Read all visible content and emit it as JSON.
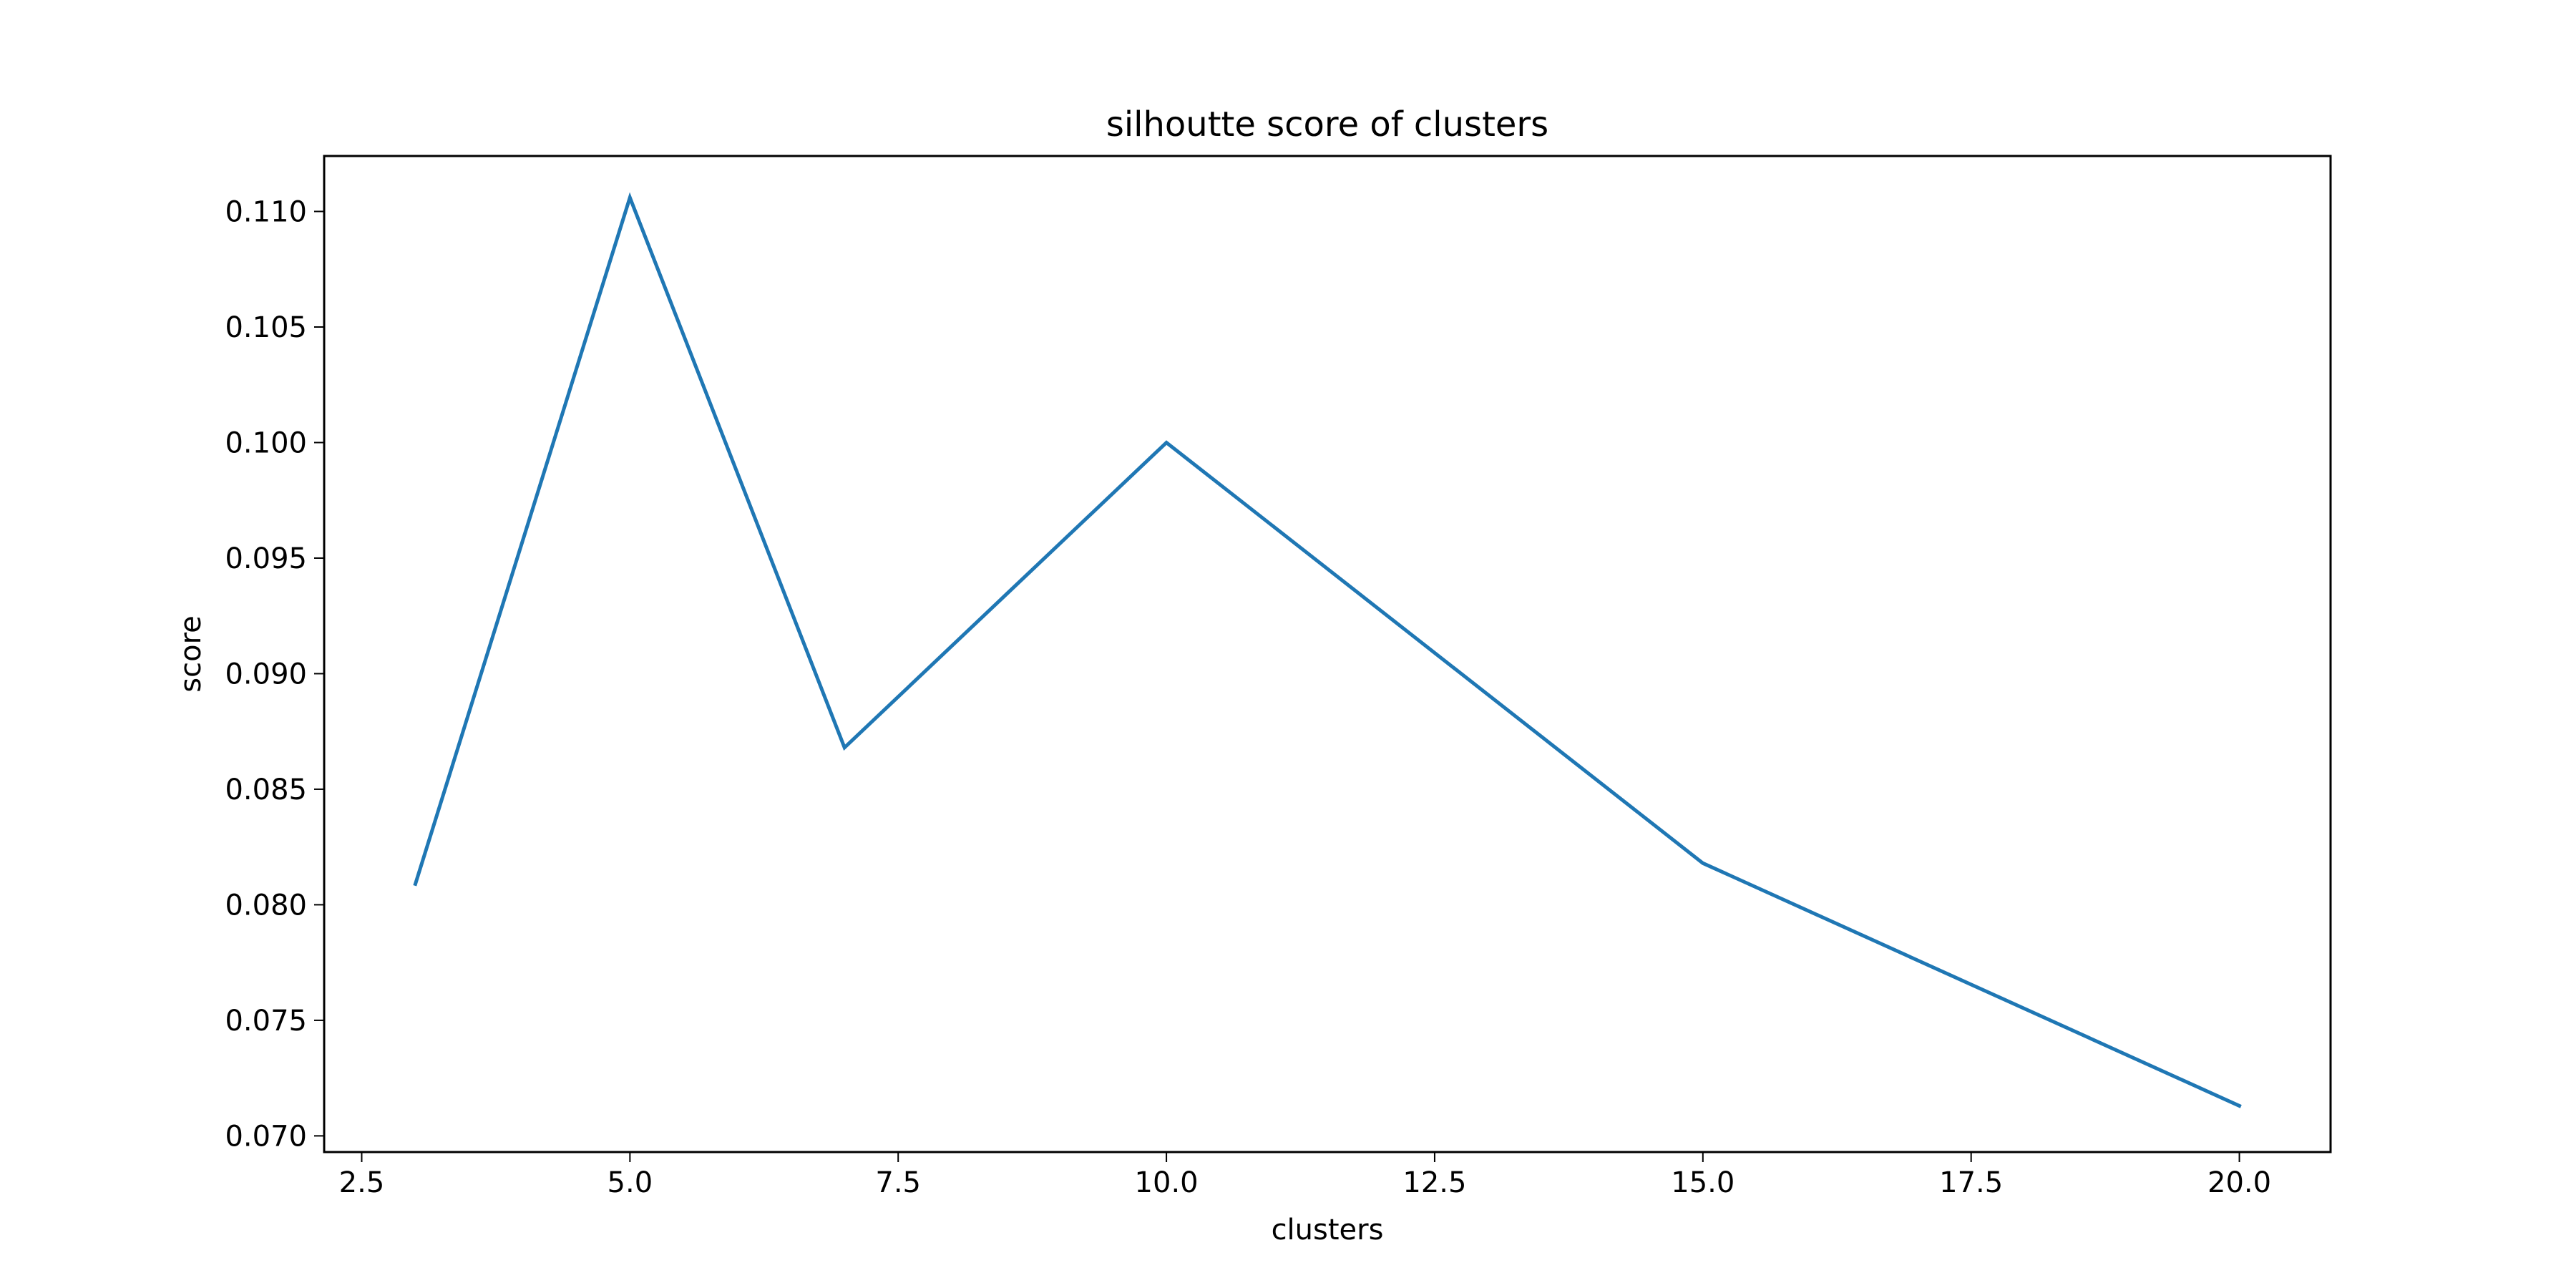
{
  "chart_data": {
    "type": "line",
    "title": "silhoutte score of clusters",
    "xlabel": "clusters",
    "ylabel": "score",
    "xlim": [
      2.15,
      20.85
    ],
    "ylim": [
      0.0693,
      0.1124
    ],
    "x_ticks": [
      "2.5",
      "5.0",
      "7.5",
      "10.0",
      "12.5",
      "15.0",
      "17.5",
      "20.0"
    ],
    "y_ticks": [
      "0.070",
      "0.075",
      "0.080",
      "0.085",
      "0.090",
      "0.095",
      "0.100",
      "0.105",
      "0.110"
    ],
    "grid": false,
    "legend": "none",
    "series": [
      {
        "x": [
          3,
          5,
          7,
          10,
          15,
          20
        ],
        "values": [
          0.0809,
          0.1106,
          0.0868,
          0.1,
          0.0818,
          0.0713
        ],
        "color": "#1f77b4"
      }
    ]
  }
}
